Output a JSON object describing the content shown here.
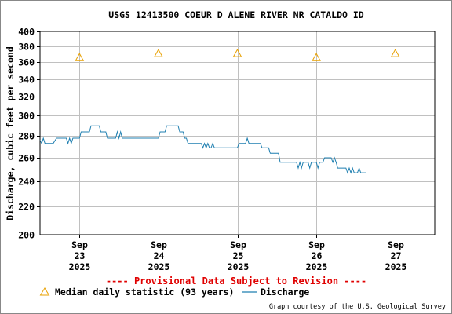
{
  "chart_data": {
    "type": "line",
    "title": "USGS 12413500 COEUR D ALENE RIVER NR CATALDO ID",
    "ylabel": "Discharge, cubic feet per second",
    "xlabel": "",
    "ylim": [
      200,
      400
    ],
    "ytick_values": [
      200,
      220,
      240,
      260,
      280,
      300,
      320,
      340,
      360,
      380,
      400
    ],
    "y_scale": "log",
    "xlim": [
      "2025-09-22 12:00",
      "2025-09-27 12:00"
    ],
    "x_ticks": [
      {
        "date": "2025-09-23",
        "label_month": "Sep",
        "label_day": "23",
        "label_year": "2025"
      },
      {
        "date": "2025-09-24",
        "label_month": "Sep",
        "label_day": "24",
        "label_year": "2025"
      },
      {
        "date": "2025-09-25",
        "label_month": "Sep",
        "label_day": "25",
        "label_year": "2025"
      },
      {
        "date": "2025-09-26",
        "label_month": "Sep",
        "label_day": "26",
        "label_year": "2025"
      },
      {
        "date": "2025-09-27",
        "label_month": "Sep",
        "label_day": "27",
        "label_year": "2025"
      }
    ],
    "grid": true,
    "series": [
      {
        "name": "Median daily statistic (93 years)",
        "kind": "marker-triangle",
        "color": "#e8a000",
        "points": [
          {
            "x": "2025-09-23",
            "y": 366
          },
          {
            "x": "2025-09-24",
            "y": 371
          },
          {
            "x": "2025-09-25",
            "y": 371
          },
          {
            "x": "2025-09-26",
            "y": 366
          },
          {
            "x": "2025-09-27",
            "y": 371
          }
        ]
      },
      {
        "name": "Discharge",
        "kind": "line",
        "color": "#1f7fb0",
        "points": [
          {
            "x": "2025-09-22 12:00",
            "y": 276
          },
          {
            "x": "2025-09-22 12:30",
            "y": 273
          },
          {
            "x": "2025-09-22 13:00",
            "y": 278
          },
          {
            "x": "2025-09-22 13:30",
            "y": 273
          },
          {
            "x": "2025-09-22 16:00",
            "y": 273
          },
          {
            "x": "2025-09-22 17:00",
            "y": 278
          },
          {
            "x": "2025-09-22 20:00",
            "y": 278
          },
          {
            "x": "2025-09-22 20:30",
            "y": 273
          },
          {
            "x": "2025-09-22 21:00",
            "y": 278
          },
          {
            "x": "2025-09-22 21:30",
            "y": 273
          },
          {
            "x": "2025-09-22 22:00",
            "y": 278
          },
          {
            "x": "2025-09-23 00:00",
            "y": 278
          },
          {
            "x": "2025-09-23 00:30",
            "y": 284
          },
          {
            "x": "2025-09-23 03:00",
            "y": 284
          },
          {
            "x": "2025-09-23 03:30",
            "y": 290
          },
          {
            "x": "2025-09-23 06:00",
            "y": 290
          },
          {
            "x": "2025-09-23 06:30",
            "y": 284
          },
          {
            "x": "2025-09-23 08:00",
            "y": 284
          },
          {
            "x": "2025-09-23 08:30",
            "y": 278
          },
          {
            "x": "2025-09-23 11:00",
            "y": 278
          },
          {
            "x": "2025-09-23 11:30",
            "y": 284
          },
          {
            "x": "2025-09-23 12:00",
            "y": 278
          },
          {
            "x": "2025-09-23 12:30",
            "y": 284
          },
          {
            "x": "2025-09-23 13:00",
            "y": 278
          },
          {
            "x": "2025-09-24 00:00",
            "y": 278
          },
          {
            "x": "2025-09-24 00:30",
            "y": 284
          },
          {
            "x": "2025-09-24 02:00",
            "y": 284
          },
          {
            "x": "2025-09-24 02:30",
            "y": 290
          },
          {
            "x": "2025-09-24 06:00",
            "y": 290
          },
          {
            "x": "2025-09-24 06:30",
            "y": 284
          },
          {
            "x": "2025-09-24 07:30",
            "y": 284
          },
          {
            "x": "2025-09-24 08:00",
            "y": 278
          },
          {
            "x": "2025-09-24 08:30",
            "y": 278
          },
          {
            "x": "2025-09-24 09:00",
            "y": 273
          },
          {
            "x": "2025-09-24 13:00",
            "y": 273
          },
          {
            "x": "2025-09-24 13:30",
            "y": 269
          },
          {
            "x": "2025-09-24 14:00",
            "y": 273
          },
          {
            "x": "2025-09-24 14:30",
            "y": 269
          },
          {
            "x": "2025-09-24 15:00",
            "y": 273
          },
          {
            "x": "2025-09-24 15:30",
            "y": 269
          },
          {
            "x": "2025-09-24 16:00",
            "y": 269
          },
          {
            "x": "2025-09-24 16:30",
            "y": 273
          },
          {
            "x": "2025-09-24 17:00",
            "y": 269
          },
          {
            "x": "2025-09-25 00:00",
            "y": 269
          },
          {
            "x": "2025-09-25 00:30",
            "y": 273
          },
          {
            "x": "2025-09-25 02:30",
            "y": 273
          },
          {
            "x": "2025-09-25 03:00",
            "y": 278
          },
          {
            "x": "2025-09-25 03:30",
            "y": 273
          },
          {
            "x": "2025-09-25 07:00",
            "y": 273
          },
          {
            "x": "2025-09-25 07:30",
            "y": 269
          },
          {
            "x": "2025-09-25 09:30",
            "y": 269
          },
          {
            "x": "2025-09-25 10:00",
            "y": 264
          },
          {
            "x": "2025-09-25 12:30",
            "y": 264
          },
          {
            "x": "2025-09-25 13:00",
            "y": 256
          },
          {
            "x": "2025-09-25 18:00",
            "y": 256
          },
          {
            "x": "2025-09-25 18:30",
            "y": 251
          },
          {
            "x": "2025-09-25 19:00",
            "y": 256
          },
          {
            "x": "2025-09-25 19:30",
            "y": 251
          },
          {
            "x": "2025-09-25 20:00",
            "y": 256
          },
          {
            "x": "2025-09-25 21:30",
            "y": 256
          },
          {
            "x": "2025-09-25 22:00",
            "y": 251
          },
          {
            "x": "2025-09-25 22:30",
            "y": 256
          },
          {
            "x": "2025-09-26 00:00",
            "y": 256
          },
          {
            "x": "2025-09-26 00:30",
            "y": 251
          },
          {
            "x": "2025-09-26 01:00",
            "y": 256
          },
          {
            "x": "2025-09-26 02:00",
            "y": 256
          },
          {
            "x": "2025-09-26 02:30",
            "y": 260
          },
          {
            "x": "2025-09-26 04:30",
            "y": 260
          },
          {
            "x": "2025-09-26 05:00",
            "y": 256
          },
          {
            "x": "2025-09-26 05:30",
            "y": 260
          },
          {
            "x": "2025-09-26 06:00",
            "y": 256
          },
          {
            "x": "2025-09-26 06:30",
            "y": 251
          },
          {
            "x": "2025-09-26 08:00",
            "y": 251
          },
          {
            "x": "2025-09-26 09:00",
            "y": 251
          },
          {
            "x": "2025-09-26 09:30",
            "y": 247
          },
          {
            "x": "2025-09-26 10:00",
            "y": 251
          },
          {
            "x": "2025-09-26 10:30",
            "y": 247
          },
          {
            "x": "2025-09-26 11:00",
            "y": 251
          },
          {
            "x": "2025-09-26 11:30",
            "y": 247
          },
          {
            "x": "2025-09-26 12:30",
            "y": 247
          },
          {
            "x": "2025-09-26 13:00",
            "y": 251
          },
          {
            "x": "2025-09-26 13:30",
            "y": 247
          },
          {
            "x": "2025-09-26 15:00",
            "y": 247
          }
        ]
      }
    ],
    "annotations": {
      "provisional": "---- Provisional Data Subject to Revision ----",
      "credit": "Graph courtesy of the U.S. Geological Survey"
    }
  },
  "legend": {
    "median_label": "Median daily statistic (93 years)",
    "discharge_label": "Discharge"
  },
  "colors": {
    "median": "#e8a000",
    "discharge": "#1f7fb0",
    "provisional": "#e00000",
    "grid": "#c0c0c0"
  }
}
